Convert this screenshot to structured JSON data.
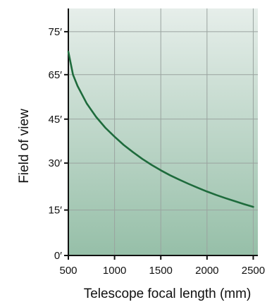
{
  "chart_data": {
    "type": "line",
    "xlabel": "Telescope focal length (mm)",
    "ylabel": "Field of view",
    "xlim": [
      500,
      2550
    ],
    "x_ticks": [
      {
        "value": 500,
        "label": "500"
      },
      {
        "value": 1000,
        "label": "1000"
      },
      {
        "value": 1500,
        "label": "1500"
      },
      {
        "value": 2000,
        "label": "2000"
      },
      {
        "value": 2500,
        "label": "2500"
      }
    ],
    "y_ticks": [
      {
        "label": "0′"
      },
      {
        "label": "15′"
      },
      {
        "label": "30′"
      },
      {
        "label": "45′"
      },
      {
        "label": "65′"
      },
      {
        "label": "75′"
      }
    ],
    "grid": true,
    "series": [
      {
        "color": "#1e6b3c",
        "x": [
          500,
          550,
          600,
          700,
          800,
          900,
          1000,
          1100,
          1200,
          1300,
          1400,
          1500,
          1600,
          1700,
          1800,
          1900,
          2000,
          2100,
          2200,
          2300,
          2400,
          2500
        ],
        "y_position": [
          0.825,
          0.732,
          0.686,
          0.615,
          0.561,
          0.517,
          0.481,
          0.447,
          0.418,
          0.391,
          0.367,
          0.345,
          0.325,
          0.307,
          0.29,
          0.274,
          0.259,
          0.245,
          0.232,
          0.22,
          0.208,
          0.197
        ]
      }
    ],
    "colors": {
      "background_top": "#e6eeea",
      "background_bottom": "#96bfa8",
      "line": "#1e6b3c"
    }
  }
}
